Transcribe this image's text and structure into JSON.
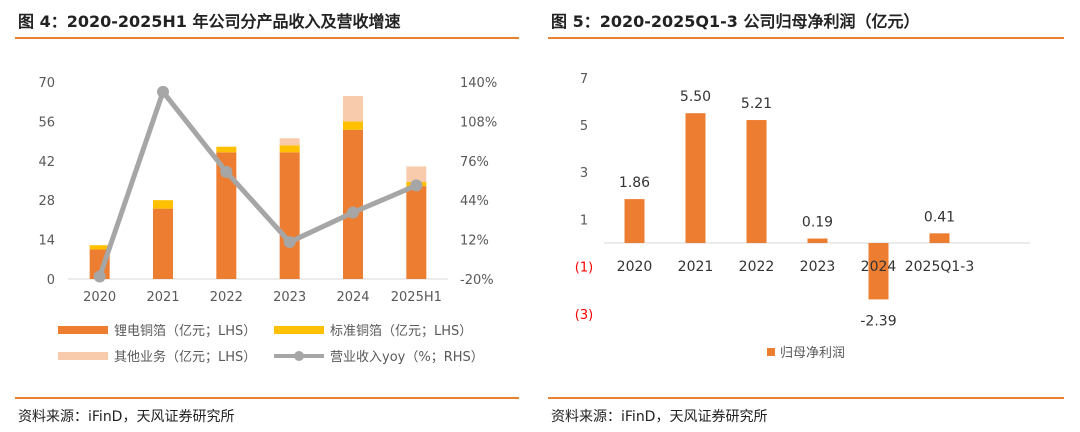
{
  "colors": {
    "accent": "#E8822E",
    "copper": "#ED7D31",
    "std": "#FFC000",
    "other": "#F8CBAD",
    "yoy": "#A6A6A6",
    "neg_label": "#FF0000",
    "text": "#595959"
  },
  "left": {
    "title": "图 4：2020-2025H1 年公司分产品收入及营收增速",
    "source": "资料来源：iFinD，天风证券研究所"
  },
  "right": {
    "title": "图 5：2020-2025Q1-3 公司归母净利润（亿元）",
    "source": "资料来源：iFinD，天风证券研究所"
  },
  "chart_data": [
    {
      "type": "bar",
      "stacked": true,
      "categories": [
        "2020",
        "2021",
        "2022",
        "2023",
        "2024",
        "2025H1"
      ],
      "series": [
        {
          "name": "锂电铜箔（亿元；LHS）",
          "values": [
            10.5,
            25,
            45,
            45,
            53,
            33
          ]
        },
        {
          "name": "标准铜箔（亿元；LHS）",
          "values": [
            1.5,
            3,
            2,
            2.5,
            3,
            1.5
          ]
        },
        {
          "name": "其他业务（亿元；LHS）",
          "values": [
            0,
            0,
            0,
            2.5,
            9,
            5.5
          ]
        }
      ],
      "line_series": {
        "name": "营业收入yoy（%；RHS）",
        "values": [
          -18,
          132,
          67,
          10,
          34,
          56
        ]
      },
      "y_left": {
        "ticks": [
          "0",
          "14",
          "28",
          "42",
          "56",
          "70"
        ],
        "lim": [
          0,
          70
        ]
      },
      "y_right": {
        "ticks": [
          "-20%",
          "12%",
          "44%",
          "76%",
          "108%",
          "140%"
        ],
        "lim": [
          -20,
          140
        ]
      },
      "legend_position": "bottom"
    },
    {
      "type": "bar",
      "categories": [
        "2020",
        "2021",
        "2022",
        "2023",
        "2024",
        "2025Q1-3"
      ],
      "series": [
        {
          "name": "归母净利润",
          "values": [
            1.86,
            5.5,
            5.21,
            0.19,
            -2.39,
            0.41
          ]
        }
      ],
      "data_labels": [
        "1.86",
        "5.50",
        "5.21",
        "0.19",
        "-2.39",
        "0.41"
      ],
      "y": {
        "ticks": [
          "7",
          "5",
          "3",
          "1",
          "(1)",
          "(3)"
        ],
        "tick_values": [
          7,
          5,
          3,
          1,
          -1,
          -3
        ]
      },
      "legend_position": "bottom"
    }
  ]
}
